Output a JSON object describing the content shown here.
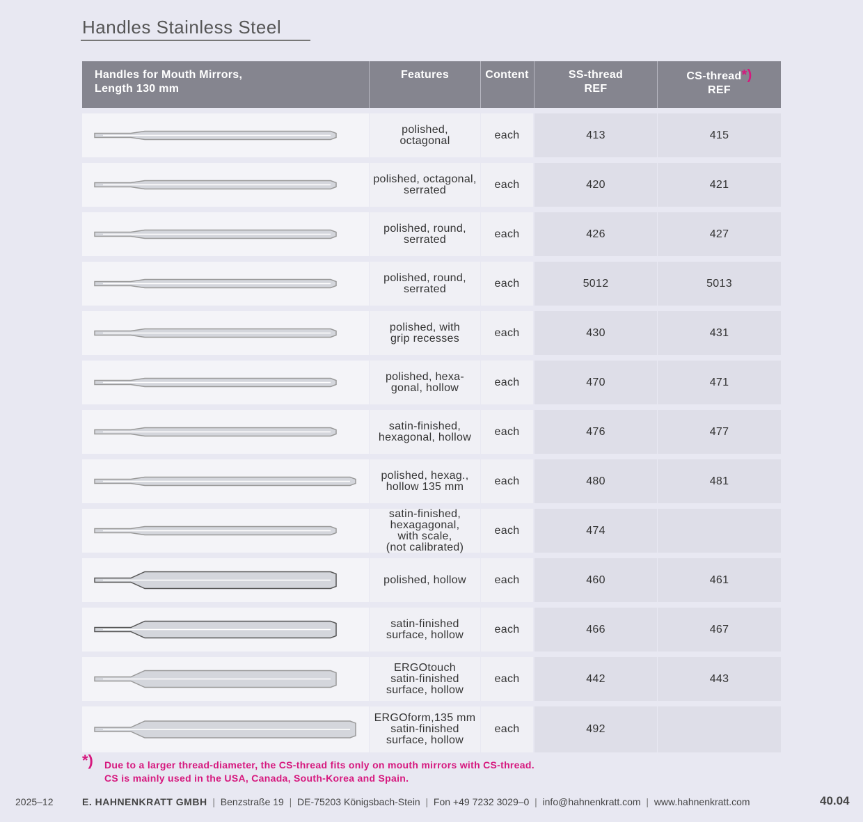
{
  "header": {
    "title": "Handles Stainless Steel"
  },
  "table": {
    "columns": [
      {
        "label": "Handles for Mouth Mirrors,\nLength 130 mm"
      },
      {
        "label": "Features"
      },
      {
        "label": "Content"
      },
      {
        "label": "SS-thread\nREF"
      },
      {
        "label": "CS-thread",
        "mark": "*)",
        "sub": "REF"
      }
    ],
    "rows": [
      {
        "features": "polished,\noctagonal",
        "content": "each",
        "ss": "413",
        "cs": "415"
      },
      {
        "features": "polished, octagonal,\nserrated",
        "content": "each",
        "ss": "420",
        "cs": "421"
      },
      {
        "features": "polished, round,\nserrated",
        "content": "each",
        "ss": "426",
        "cs": "427"
      },
      {
        "features": "polished, round,\nserrated",
        "content": "each",
        "ss": "5012",
        "cs": "5013"
      },
      {
        "features": "polished, with\ngrip recesses",
        "content": "each",
        "ss": "430",
        "cs": "431"
      },
      {
        "features": "polished, hexa-\ngonal, hollow",
        "content": "each",
        "ss": "470",
        "cs": "471"
      },
      {
        "features": "satin-finished,\nhexagonal, hollow",
        "content": "each",
        "ss": "476",
        "cs": "477"
      },
      {
        "features": "polished, hexag.,\nhollow 135 mm",
        "content": "each",
        "ss": "480",
        "cs": "481"
      },
      {
        "features": "satin-finished,\nhexagagonal,\nwith scale,\n(not calibrated)",
        "content": "each",
        "ss": "474"
      },
      {
        "features": "polished, hollow",
        "content": "each",
        "ss": "460",
        "cs": "461"
      },
      {
        "features": "satin-finished\nsurface, hollow",
        "content": "each",
        "ss": "466",
        "cs": "467"
      },
      {
        "features": "ERGOtouch\nsatin-finished\nsurface, hollow",
        "content": "each",
        "ss": "442",
        "cs": "443"
      },
      {
        "features": "ERGOform,135 mm\nsatin-finished\nsurface, hollow",
        "content": "each",
        "ss": "492"
      }
    ]
  },
  "footnote": {
    "mark": "*)",
    "lines": [
      "Due to a larger thread-diameter, the CS-thread fits only on mouth mirrors with CS-thread.",
      "CS is mainly used in the USA, Canada, South-Korea and Spain."
    ]
  },
  "footer": {
    "date": "2025–12",
    "company": "E. HAHNENKRATT GMBH",
    "items": [
      "Benzstraße 19",
      "DE-75203 Königsbach-Stein",
      "Fon +49 7232 3029–0",
      "info@hahnenkratt.com",
      "www.hahnenkratt.com"
    ],
    "page": "40.04"
  }
}
